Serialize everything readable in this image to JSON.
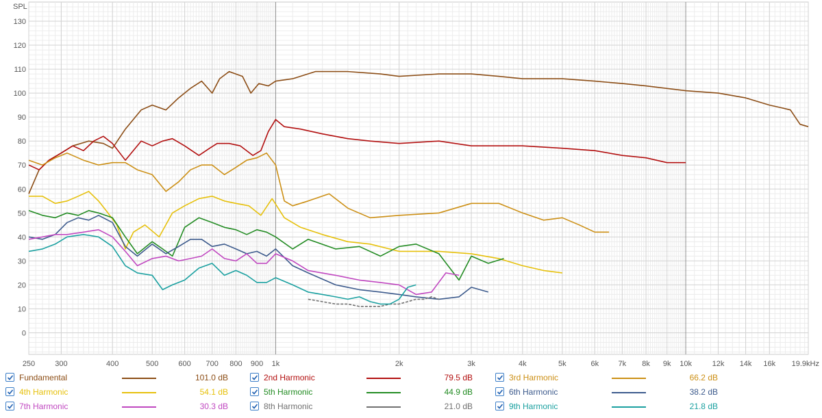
{
  "chart_data": {
    "type": "line",
    "ylabel": "SPL",
    "x_scale": "log",
    "xlim": [
      250,
      19900
    ],
    "ylim": [
      -9,
      138
    ],
    "y_ticks": [
      0,
      10,
      20,
      30,
      40,
      50,
      60,
      70,
      80,
      90,
      100,
      110,
      120,
      130
    ],
    "x_ticks": [
      {
        "value": 250,
        "label": "250"
      },
      {
        "value": 300,
        "label": "300"
      },
      {
        "value": 400,
        "label": "400"
      },
      {
        "value": 500,
        "label": "500"
      },
      {
        "value": 600,
        "label": "600"
      },
      {
        "value": 700,
        "label": "700"
      },
      {
        "value": 800,
        "label": "800"
      },
      {
        "value": 900,
        "label": "900"
      },
      {
        "value": 1000,
        "label": "1k"
      },
      {
        "value": 2000,
        "label": "2k"
      },
      {
        "value": 3000,
        "label": "3k"
      },
      {
        "value": 4000,
        "label": "4k"
      },
      {
        "value": 5000,
        "label": "5k"
      },
      {
        "value": 6000,
        "label": "6k"
      },
      {
        "value": 7000,
        "label": "7k"
      },
      {
        "value": 8000,
        "label": "8k"
      },
      {
        "value": 9000,
        "label": "9k"
      },
      {
        "value": 10000,
        "label": "10k"
      },
      {
        "value": 12000,
        "label": "12k"
      },
      {
        "value": 14000,
        "label": "14k"
      },
      {
        "value": 16000,
        "label": "16k"
      },
      {
        "value": 19900,
        "label": "19.9kHz"
      }
    ],
    "grid": true,
    "legend_position": "bottom",
    "series": [
      {
        "name": "Fundamental",
        "value_label": "101.0 dB",
        "color": "#8b4c14",
        "x": [
          250,
          265,
          280,
          300,
          320,
          350,
          380,
          400,
          430,
          470,
          500,
          540,
          580,
          620,
          660,
          700,
          730,
          770,
          830,
          870,
          910,
          960,
          1000,
          1100,
          1250,
          1500,
          1800,
          2000,
          2500,
          3000,
          3500,
          4000,
          5000,
          6000,
          7000,
          8000,
          10000,
          12000,
          14000,
          16000,
          17000,
          18000,
          19000,
          19900
        ],
        "y": [
          58,
          68,
          72,
          75,
          78,
          80,
          79,
          77,
          85,
          93,
          95,
          93,
          98,
          102,
          105,
          100,
          106,
          109,
          107,
          100,
          104,
          103,
          105,
          106,
          109,
          109,
          108,
          107,
          108,
          108,
          107,
          106,
          106,
          105,
          104,
          103,
          101,
          100,
          98,
          95,
          94,
          93,
          87,
          86
        ]
      },
      {
        "name": "2nd Harmonic",
        "value_label": "79.5 dB",
        "color": "#b20e0e",
        "x": [
          250,
          265,
          280,
          300,
          320,
          340,
          360,
          380,
          400,
          430,
          470,
          500,
          530,
          560,
          600,
          650,
          690,
          720,
          770,
          820,
          880,
          920,
          960,
          1000,
          1050,
          1150,
          1300,
          1500,
          1700,
          2000,
          2500,
          3000,
          4000,
          5000,
          6000,
          7000,
          8000,
          9000,
          10000
        ],
        "y": [
          70,
          68,
          72,
          75,
          78,
          76,
          80,
          82,
          79,
          72,
          80,
          78,
          80,
          81,
          78,
          74,
          77,
          79,
          79,
          78,
          74,
          76,
          84,
          89,
          86,
          85,
          83,
          81,
          80,
          79,
          80,
          78,
          78,
          77,
          76,
          74,
          73,
          71,
          71
        ]
      },
      {
        "name": "3rd Harmonic",
        "value_label": "66.2 dB",
        "color": "#cc8f14",
        "x": [
          250,
          270,
          290,
          310,
          340,
          370,
          400,
          430,
          460,
          500,
          540,
          580,
          620,
          660,
          700,
          750,
          800,
          850,
          900,
          950,
          1000,
          1050,
          1100,
          1200,
          1350,
          1500,
          1700,
          2000,
          2500,
          3000,
          3500,
          4000,
          4500,
          5000,
          5500,
          6000,
          6500
        ],
        "y": [
          72,
          70,
          73,
          75,
          72,
          70,
          71,
          71,
          68,
          66,
          59,
          63,
          68,
          70,
          70,
          66,
          69,
          72,
          73,
          75,
          70,
          55,
          53,
          55,
          58,
          52,
          48,
          49,
          50,
          54,
          54,
          50,
          47,
          48,
          45,
          42,
          42
        ]
      },
      {
        "name": "4th Harmonic",
        "value_label": "54.1 dB",
        "color": "#e6c00a",
        "x": [
          250,
          270,
          290,
          310,
          330,
          350,
          370,
          390,
          410,
          430,
          450,
          480,
          520,
          560,
          600,
          650,
          700,
          750,
          800,
          860,
          920,
          980,
          1050,
          1150,
          1300,
          1500,
          1700,
          2000,
          2500,
          3000,
          3500,
          4000,
          4500,
          5000
        ],
        "y": [
          57,
          57,
          54,
          55,
          57,
          59,
          55,
          50,
          45,
          35,
          42,
          45,
          40,
          50,
          53,
          56,
          57,
          55,
          54,
          53,
          49,
          56,
          48,
          44,
          41,
          38,
          37,
          34,
          34,
          33,
          31,
          28,
          26,
          25
        ]
      },
      {
        "name": "5th Harmonic",
        "value_label": "44.9 dB",
        "color": "#228b22",
        "x": [
          250,
          270,
          290,
          310,
          330,
          350,
          370,
          400,
          430,
          460,
          500,
          530,
          560,
          600,
          650,
          700,
          750,
          800,
          850,
          900,
          950,
          1000,
          1100,
          1200,
          1400,
          1600,
          1800,
          2000,
          2200,
          2500,
          2800,
          3000,
          3300,
          3600
        ],
        "y": [
          51,
          49,
          48,
          50,
          49,
          51,
          50,
          48,
          40,
          33,
          38,
          35,
          32,
          44,
          48,
          46,
          44,
          43,
          41,
          43,
          42,
          40,
          35,
          39,
          35,
          36,
          32,
          36,
          37,
          33,
          22,
          32,
          29,
          31
        ]
      },
      {
        "name": "6th Harmonic",
        "value_label": "38.2 dB",
        "color": "#3c5a8c",
        "x": [
          250,
          270,
          290,
          310,
          330,
          350,
          370,
          400,
          430,
          460,
          500,
          540,
          580,
          620,
          660,
          700,
          750,
          800,
          850,
          900,
          950,
          1000,
          1100,
          1200,
          1400,
          1600,
          1800,
          2000,
          2200,
          2500,
          2800,
          3000,
          3300
        ],
        "y": [
          40,
          39,
          41,
          46,
          48,
          47,
          49,
          46,
          36,
          32,
          37,
          33,
          36,
          39,
          39,
          36,
          37,
          35,
          33,
          34,
          32,
          35,
          28,
          25,
          20,
          18,
          17,
          16,
          15,
          14,
          15,
          19,
          17
        ]
      },
      {
        "name": "7th Harmonic",
        "value_label": "30.3 dB",
        "color": "#c047c0",
        "x": [
          250,
          270,
          290,
          310,
          340,
          370,
          400,
          430,
          460,
          500,
          540,
          580,
          620,
          660,
          700,
          750,
          800,
          850,
          900,
          950,
          1000,
          1100,
          1200,
          1400,
          1600,
          1800,
          2000,
          2200,
          2400,
          2600,
          2800
        ],
        "y": [
          39,
          40,
          41,
          41,
          42,
          43,
          40,
          34,
          28,
          31,
          32,
          30,
          31,
          32,
          35,
          31,
          30,
          33,
          29,
          29,
          33,
          30,
          26,
          24,
          22,
          21,
          20,
          16,
          17,
          25,
          24
        ]
      },
      {
        "name": "8th Harmonic",
        "value_label": "21.0 dB",
        "color": "#707070",
        "x": [
          1200,
          1300,
          1400,
          1500,
          1600,
          1700,
          1800,
          1900,
          2000,
          2100,
          2200,
          2300,
          2400,
          2500
        ],
        "y": [
          14,
          13,
          12,
          12,
          11,
          11,
          11,
          12,
          12,
          13,
          14,
          14,
          15,
          14
        ]
      },
      {
        "name": "9th Harmonic",
        "value_label": "21.8 dB",
        "color": "#1aa0a0",
        "x": [
          250,
          270,
          290,
          310,
          340,
          370,
          400,
          430,
          460,
          500,
          530,
          560,
          600,
          650,
          700,
          750,
          800,
          850,
          900,
          950,
          1000,
          1100,
          1200,
          1300,
          1400,
          1500,
          1600,
          1700,
          1800,
          1900,
          2000,
          2100,
          2200
        ],
        "y": [
          34,
          35,
          37,
          40,
          41,
          40,
          36,
          28,
          25,
          24,
          18,
          20,
          22,
          27,
          29,
          24,
          26,
          24,
          21,
          21,
          23,
          20,
          17,
          16,
          15,
          14,
          15,
          13,
          12,
          12,
          14,
          19,
          20
        ]
      }
    ]
  }
}
